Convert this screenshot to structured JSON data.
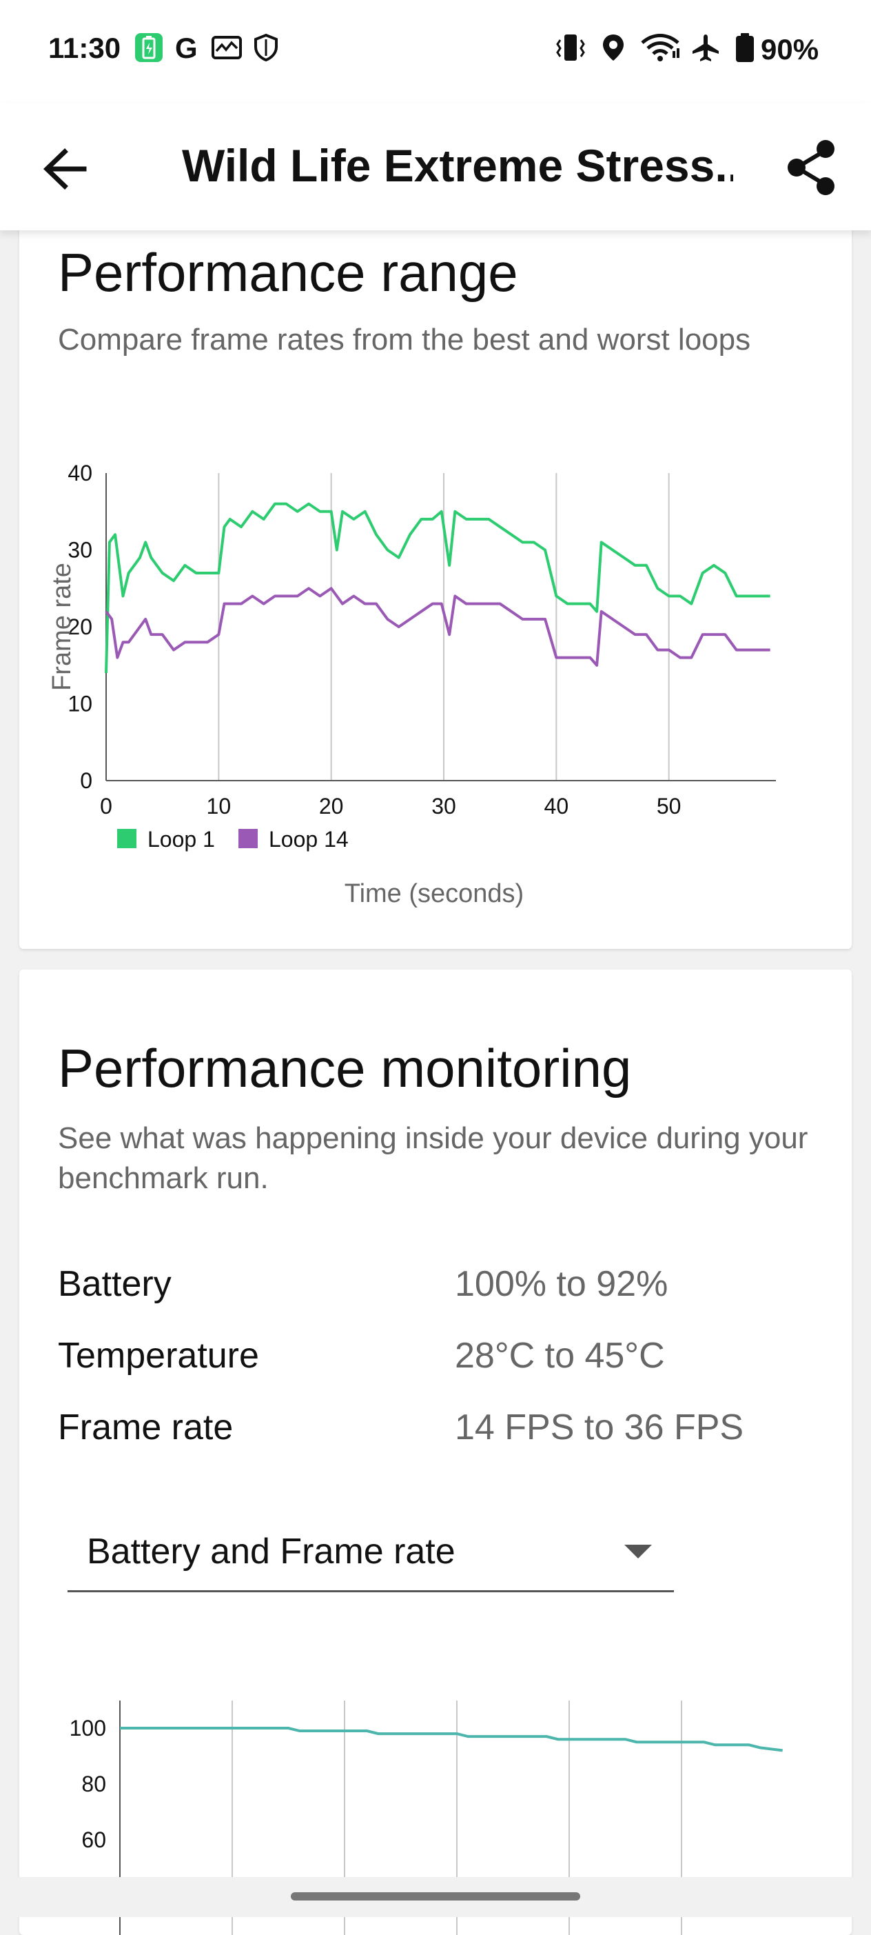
{
  "status_bar": {
    "time": "11:30",
    "battery_percent": "90%",
    "left_icons": [
      "battery-saver-icon",
      "google-icon",
      "activity-icon",
      "shield-icon"
    ],
    "right_icons": [
      "vibrate-icon",
      "location-icon",
      "wifi-icon",
      "airplane-icon",
      "battery-icon"
    ]
  },
  "app_bar": {
    "title": "Wild Life Extreme Stress...",
    "back_icon": "arrow-left-icon",
    "share_icon": "share-icon"
  },
  "performance_range": {
    "title": "Performance range",
    "subtitle": "Compare frame rates from the best and worst loops"
  },
  "chart_data": [
    {
      "type": "line",
      "title": "",
      "xlabel": "Time (seconds)",
      "ylabel": "Frame rate",
      "xlim": [
        0,
        60
      ],
      "ylim": [
        0,
        40
      ],
      "x_ticks": [
        0,
        10,
        20,
        30,
        40,
        50
      ],
      "y_ticks": [
        0,
        10,
        20,
        30,
        40
      ],
      "grid": "vertical",
      "legend": "bottom-left",
      "series": [
        {
          "name": "Loop 1",
          "color": "#2ecc71",
          "x": [
            0,
            0.3,
            0.8,
            1.5,
            2,
            3,
            3.5,
            4,
            5,
            6,
            7,
            8,
            9,
            10,
            10.5,
            11,
            12,
            13,
            14,
            15,
            16,
            17,
            18,
            19,
            20,
            20.5,
            21,
            22,
            23,
            24,
            25,
            26,
            27,
            28,
            29,
            29.8,
            30.5,
            31,
            32,
            33,
            34,
            35,
            36,
            37,
            37.5,
            38,
            39,
            40,
            41,
            42,
            43,
            43.6,
            44,
            45,
            46,
            47,
            48,
            49,
            50,
            51,
            52,
            53,
            54,
            55,
            56,
            57,
            58,
            59
          ],
          "y": [
            14,
            31,
            32,
            24,
            27,
            29,
            31,
            29,
            27,
            26,
            28,
            27,
            27,
            27,
            33,
            34,
            33,
            35,
            34,
            36,
            36,
            35,
            36,
            35,
            35,
            30,
            35,
            34,
            35,
            32,
            30,
            29,
            32,
            34,
            34,
            35,
            28,
            35,
            34,
            34,
            34,
            33,
            32,
            31,
            31,
            31,
            30,
            24,
            23,
            23,
            23,
            22,
            31,
            30,
            29,
            28,
            28,
            25,
            24,
            24,
            23,
            27,
            28,
            27,
            24,
            24,
            24,
            24
          ]
        },
        {
          "name": "Loop 14",
          "color": "#9b59b6",
          "x": [
            0,
            0.5,
            1,
            1.5,
            2,
            3,
            3.5,
            4,
            5,
            6,
            7,
            8,
            9,
            10,
            10.5,
            11,
            12,
            13,
            14,
            15,
            16,
            17,
            18,
            19,
            20,
            21,
            22,
            23,
            24,
            25,
            26,
            27,
            28,
            29,
            29.8,
            30.5,
            31,
            32,
            33,
            34,
            35,
            36,
            37,
            38,
            39,
            40,
            41,
            42,
            43,
            43.6,
            44,
            45,
            46,
            47,
            48,
            49,
            50,
            51,
            52,
            53,
            54,
            55,
            56,
            57,
            58,
            59
          ],
          "y": [
            22,
            21,
            16,
            18,
            18,
            20,
            21,
            19,
            19,
            17,
            18,
            18,
            18,
            19,
            23,
            23,
            23,
            24,
            23,
            24,
            24,
            24,
            25,
            24,
            25,
            23,
            24,
            23,
            23,
            21,
            20,
            21,
            22,
            23,
            23,
            19,
            24,
            23,
            23,
            23,
            23,
            22,
            21,
            21,
            21,
            16,
            16,
            16,
            16,
            15,
            22,
            21,
            20,
            19,
            19,
            17,
            17,
            16,
            16,
            19,
            19,
            19,
            17,
            17,
            17,
            17
          ]
        }
      ]
    },
    {
      "type": "line",
      "title": "",
      "xlabel": "",
      "ylabel": "",
      "xlim": [
        0,
        60
      ],
      "ylim": [
        55,
        105
      ],
      "y_ticks": [
        60,
        80,
        100
      ],
      "grid": "vertical",
      "series": [
        {
          "color": "#4db6ac",
          "x": [
            0,
            15,
            16,
            22,
            23,
            30,
            31,
            38,
            39,
            45,
            46,
            52,
            53,
            56,
            57,
            59
          ],
          "y": [
            100,
            100,
            99,
            99,
            98,
            98,
            97,
            97,
            96,
            96,
            95,
            95,
            94,
            94,
            93,
            92
          ]
        }
      ]
    }
  ],
  "performance_monitoring": {
    "title": "Performance monitoring",
    "subtitle": "See what was happening inside your device during your benchmark run.",
    "stats": [
      {
        "label": "Battery",
        "value": "100% to 92%"
      },
      {
        "label": "Temperature",
        "value": "28°C to 45°C"
      },
      {
        "label": "Frame rate",
        "value": "14 FPS to 36 FPS"
      }
    ],
    "dropdown": {
      "selected": "Battery and Frame rate",
      "icon": "dropdown-arrow-icon"
    }
  }
}
